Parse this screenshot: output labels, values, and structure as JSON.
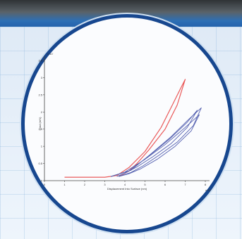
{
  "scene": {
    "colors": {
      "top_band": "#2563ad",
      "circle_border": "#17478f",
      "background": "#e9f2fb",
      "red_curve": "#ea5a5a",
      "blue_curves": "#5561b0"
    }
  },
  "chart_data": {
    "type": "line",
    "title": "",
    "xlabel": "Displacement Into Surface (nm)",
    "ylabel": "Load (mN)",
    "x_scale_label": "x 10´",
    "y_scale_label": "x 10´",
    "x_ticks": [
      "0",
      "1",
      "2",
      "3",
      "4",
      "5",
      "6",
      "7",
      "8"
    ],
    "y_ticks": [
      "0",
      "0.5",
      "1",
      "1.5",
      "2",
      "2.5",
      "3",
      "3.5"
    ],
    "xlim": [
      0,
      8
    ],
    "ylim": [
      0,
      3.5
    ],
    "grid": false,
    "series": [
      {
        "color": "#ea5a5a",
        "x": [
          1.0,
          3.0,
          3.6,
          4.2,
          5.0,
          5.8,
          6.4,
          6.8,
          7.0,
          6.6,
          6.0,
          5.2,
          4.6,
          4.2,
          3.7
        ],
        "y": [
          0.1,
          0.1,
          0.15,
          0.38,
          0.85,
          1.55,
          2.25,
          2.72,
          2.95,
          2.2,
          1.5,
          0.9,
          0.5,
          0.28,
          0.12
        ]
      },
      {
        "color": "#5561b0",
        "x": [
          3.3,
          4.0,
          5.0,
          6.0,
          7.0,
          7.7,
          7.3,
          6.5,
          5.6,
          4.8,
          4.2,
          3.7
        ],
        "y": [
          0.12,
          0.25,
          0.62,
          1.05,
          1.55,
          1.92,
          1.45,
          1.0,
          0.62,
          0.35,
          0.2,
          0.12
        ]
      },
      {
        "color": "#5561b0",
        "x": [
          3.3,
          4.2,
          5.2,
          6.2,
          7.1,
          7.6,
          7.1,
          6.3,
          5.4,
          4.6,
          4.0,
          3.6
        ],
        "y": [
          0.12,
          0.28,
          0.72,
          1.2,
          1.7,
          2.05,
          1.55,
          1.08,
          0.7,
          0.4,
          0.22,
          0.12
        ]
      },
      {
        "color": "#5561b0",
        "x": [
          3.3,
          4.3,
          5.3,
          6.3,
          7.2,
          7.8,
          7.4,
          6.6,
          5.7,
          4.9,
          4.3,
          3.7
        ],
        "y": [
          0.12,
          0.3,
          0.78,
          1.28,
          1.8,
          2.12,
          1.6,
          1.12,
          0.74,
          0.43,
          0.24,
          0.12
        ]
      }
    ]
  }
}
